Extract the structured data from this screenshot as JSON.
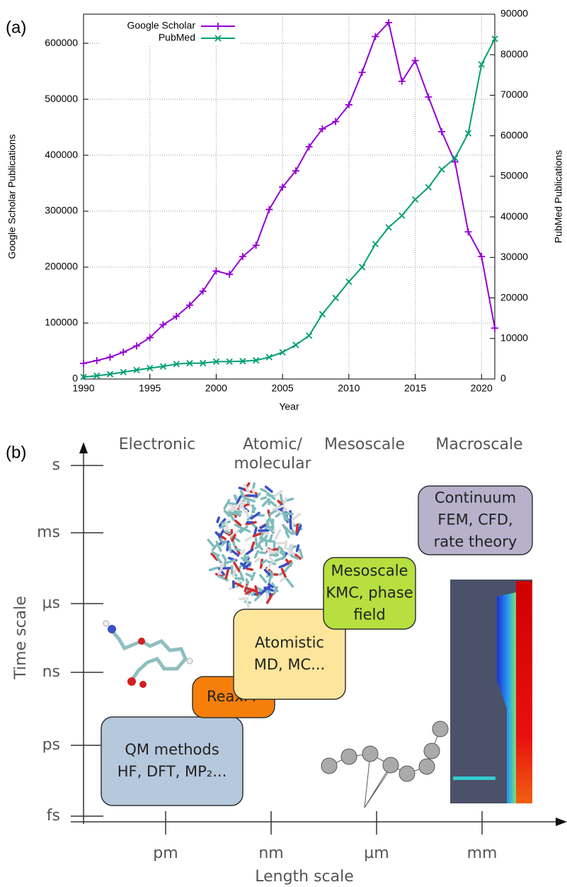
{
  "panel_labels": [
    "(a)",
    "(b)"
  ],
  "chart_data": {
    "type": "line",
    "x_label": "Year",
    "y_label": "Google Scholar Publications",
    "y2_label": "PubMed Publications",
    "x": [
      1990,
      1991,
      1992,
      1993,
      1994,
      1995,
      1996,
      1997,
      1998,
      1999,
      2000,
      2001,
      2002,
      2003,
      2004,
      2005,
      2006,
      2007,
      2008,
      2009,
      2010,
      2011,
      2012,
      2013,
      2014,
      2015,
      2016,
      2017,
      2018,
      2019,
      2020,
      2021
    ],
    "xlim": [
      1990,
      2021
    ],
    "xticks": [
      1990,
      1995,
      2000,
      2005,
      2010,
      2015,
      2020
    ],
    "ylim": [
      0,
      652000
    ],
    "yticks": [
      0,
      100000,
      200000,
      300000,
      400000,
      500000,
      600000
    ],
    "y2lim": [
      0,
      90000
    ],
    "y2ticks": [
      0,
      10000,
      20000,
      30000,
      40000,
      50000,
      60000,
      70000,
      80000,
      90000
    ],
    "grid": true,
    "legend": "top-left",
    "series": [
      {
        "name": "Google Scholar",
        "color": "#9400d3",
        "marker": "plus",
        "values": [
          28000,
          33000,
          39000,
          48000,
          59000,
          74000,
          97000,
          112000,
          132000,
          157000,
          193000,
          187000,
          219000,
          239000,
          303000,
          343000,
          372000,
          415000,
          447000,
          460000,
          490000,
          548000,
          612000,
          637000,
          532000,
          569000,
          504000,
          442000,
          388000,
          263000,
          219000,
          91000
        ]
      },
      {
        "name": "PubMed",
        "color": "#009e73",
        "marker": "cross",
        "axis": "y2",
        "values": [
          500,
          800,
          1200,
          1700,
          2200,
          2700,
          3100,
          3700,
          3900,
          3900,
          4300,
          4300,
          4400,
          4600,
          5400,
          6600,
          8400,
          10700,
          16000,
          20000,
          24000,
          27600,
          33300,
          37400,
          40300,
          44300,
          47300,
          51700,
          54500,
          60600,
          77600,
          83900
        ]
      }
    ]
  },
  "diagram": {
    "y_axis": {
      "title": "Time scale",
      "ticks": [
        "s",
        "ms",
        "µs",
        "ns",
        "ps",
        "fs"
      ]
    },
    "x_axis": {
      "title": "Length scale",
      "ticks": [
        "pm",
        "nm",
        "µm",
        "mm"
      ]
    },
    "columns": [
      [
        "Electronic"
      ],
      [
        "Atomic/",
        "molecular"
      ],
      [
        "Mesoscale"
      ],
      [
        "Macroscale"
      ]
    ],
    "boxes": [
      {
        "lines": [
          "QM methods",
          "HF, DFT, MP₂..."
        ],
        "color": "#b6c8dc"
      },
      {
        "lines": [
          "ReaxFF"
        ],
        "color": "#f57f0a"
      },
      {
        "lines": [
          "Atomistic",
          "MD, MC..."
        ],
        "color": "#fde59b"
      },
      {
        "lines": [
          "Mesoscale",
          "KMC, phase",
          "field"
        ],
        "color": "#b6df3f"
      },
      {
        "lines": [
          "Continuum",
          "FEM, CFD,",
          "rate theory"
        ],
        "color": "#b7b1cc"
      }
    ]
  }
}
